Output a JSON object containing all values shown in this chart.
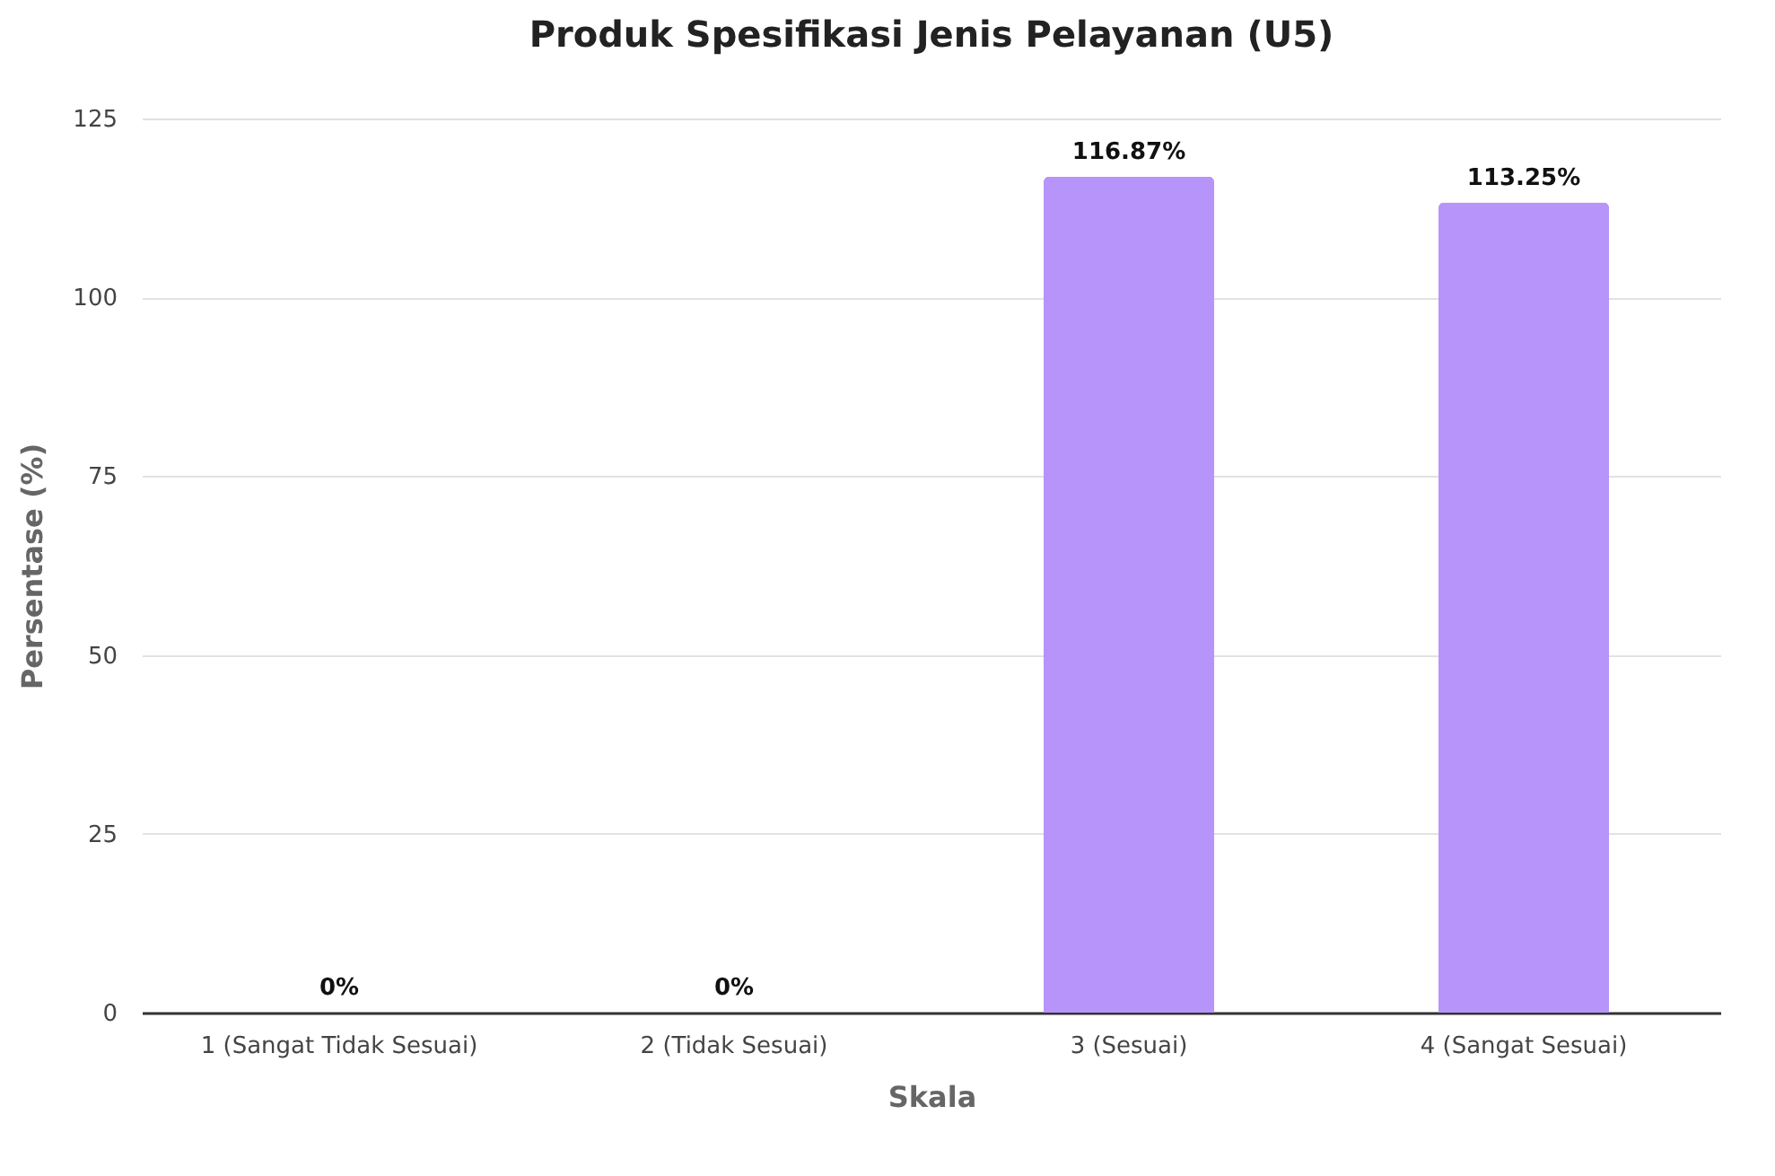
{
  "chart_data": {
    "type": "bar",
    "title": "Produk Spesifikasi Jenis Pelayanan (U5)",
    "xlabel": "Skala",
    "ylabel": "Persentase (%)",
    "categories": [
      "1 (Sangat Tidak Sesuai)",
      "2 (Tidak Sesuai)",
      "3 (Sesuai)",
      "4 (Sangat Sesuai)"
    ],
    "values": [
      0,
      0,
      116.87,
      113.25
    ],
    "value_labels": [
      "0%",
      "0%",
      "116.87%",
      "113.25%"
    ],
    "color": "#b794f9",
    "ylim": [
      0,
      125
    ],
    "yticks": [
      0,
      25,
      50,
      75,
      100,
      125
    ],
    "grid": "y"
  }
}
